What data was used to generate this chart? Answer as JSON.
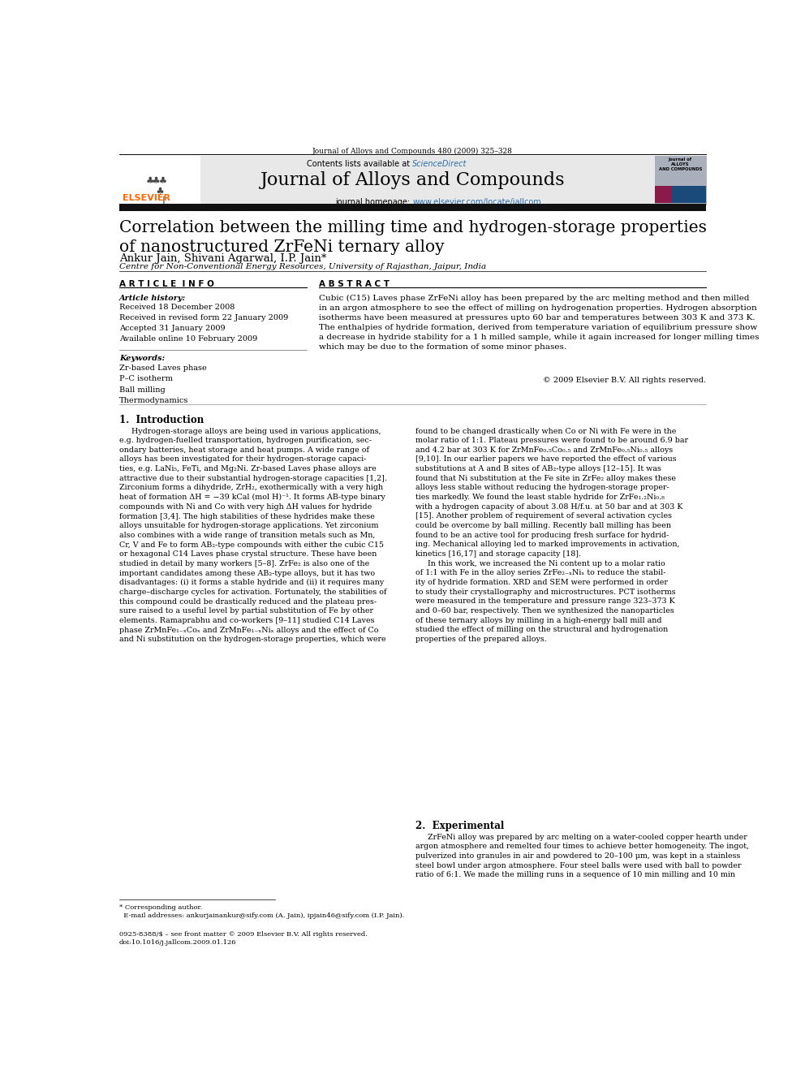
{
  "page_width": 9.92,
  "page_height": 13.23,
  "background_color": "#ffffff",
  "header_journal_ref": "Journal of Alloys and Compounds 480 (2009) 325–328",
  "header_contents_text": "Contents lists available at ",
  "header_sciencedirect": "ScienceDirect",
  "header_sciencedirect_color": "#2c6eab",
  "header_journal_name": "Journal of Alloys and Compounds",
  "header_journal_homepage_text": "journal homepage: ",
  "header_journal_url": "www.elsevier.com/locate/jallcom",
  "header_journal_url_color": "#2c6eab",
  "header_bg_color": "#e8e8e8",
  "article_title": "Correlation between the milling time and hydrogen-storage properties\nof nanostructured ZrFeNi ternary alloy",
  "authors": "Ankur Jain, Shivani Agarwal, I.P. Jain*",
  "affiliation": "Centre for Non-Conventional Energy Resources, University of Rajasthan, Jaipur, India",
  "article_info_header": "A R T I C L E  I N F O",
  "abstract_header": "A B S T R A C T",
  "article_history_label": "Article history:",
  "received_1": "Received 18 December 2008",
  "received_2": "Received in revised form 22 January 2009",
  "accepted": "Accepted 31 January 2009",
  "available": "Available online 10 February 2009",
  "keywords_label": "Keywords:",
  "keywords": [
    "Zr-based Laves phase",
    "P–C isotherm",
    "Ball milling",
    "Thermodynamics"
  ],
  "abstract_text": "Cubic (C15) Laves phase ZrFeNi alloy has been prepared by the arc melting method and then milled\nin an argon atmosphere to see the effect of milling on hydrogenation properties. Hydrogen absorption\nisotherms have been measured at pressures upto 60 bar and temperatures between 303 K and 373 K.\nThe enthalpies of hydride formation, derived from temperature variation of equilibrium pressure show\na decrease in hydride stability for a 1 h milled sample, while it again increased for longer milling times\nwhich may be due to the formation of some minor phases.",
  "copyright_text": "© 2009 Elsevier B.V. All rights reserved.",
  "section1_title": "1.  Introduction",
  "intro_col1": "     Hydrogen-storage alloys are being used in various applications,\ne.g. hydrogen-fuelled transportation, hydrogen purification, sec-\nondary batteries, heat storage and heat pumps. A wide range of\nalloys has been investigated for their hydrogen-storage capaci-\nties, e.g. LaNi₅, FeTi, and Mg₂Ni. Zr-based Laves phase alloys are\nattractive due to their substantial hydrogen-storage capacities [1,2].\nZirconium forms a dihydride, ZrH₂, exothermically with a very high\nheat of formation ΔH = −39 kCal (mol H)⁻¹. It forms AB-type binary\ncompounds with Ni and Co with very high ΔH values for hydride\nformation [3,4]. The high stabilities of these hydrides make these\nalloys unsuitable for hydrogen-storage applications. Yet zirconium\nalso combines with a wide range of transition metals such as Mn,\nCr, V and Fe to form AB₂-type compounds with either the cubic C15\nor hexagonal C14 Laves phase crystal structure. These have been\nstudied in detail by many workers [5–8]. ZrFe₂ is also one of the\nimportant candidates among these AB₂-type alloys, but it has two\ndisadvantages: (i) it forms a stable hydride and (ii) it requires many\ncharge–discharge cycles for activation. Fortunately, the stabilities of\nthis compound could be drastically reduced and the plateau pres-\nsure raised to a useful level by partial substitution of Fe by other\nelements. Ramaprabhu and co-workers [9–11] studied C14 Laves\nphase ZrMnFe₁₋ₓCoₓ and ZrMnFe₁₋ₓNiₓ alloys and the effect of Co\nand Ni substitution on the hydrogen-storage properties, which were",
  "intro_col2": "found to be changed drastically when Co or Ni with Fe were in the\nmolar ratio of 1:1. Plateau pressures were found to be around 6.9 bar\nand 4.2 bar at 303 K for ZrMnFe₀.₅Co₀.₅ and ZrMnFe₀.₅Ni₀.₅ alloys\n[9,10]. In our earlier papers we have reported the effect of various\nsubstitutions at A and B sites of AB₂-type alloys [12–15]. It was\nfound that Ni substitution at the Fe site in ZrFe₂ alloy makes these\nalloys less stable without reducing the hydrogen-storage proper-\nties markedly. We found the least stable hydride for ZrFe₁.₂Ni₀.₈\nwith a hydrogen capacity of about 3.08 H/f.u. at 50 bar and at 303 K\n[15]. Another problem of requirement of several activation cycles\ncould be overcome by ball milling. Recently ball milling has been\nfound to be an active tool for producing fresh surface for hydrid-\ning. Mechanical alloying led to marked improvements in activation,\nkinetics [16,17] and storage capacity [18].\n     In this work, we increased the Ni content up to a molar ratio\nof 1:1 with Fe in the alloy series ZrFe₂₋ₓNiₓ to reduce the stabil-\nity of hydride formation. XRD and SEM were performed in order\nto study their crystallography and microstructures. PCT isotherms\nwere measured in the temperature and pressure range 323–373 K\nand 0–60 bar, respectively. Then we synthesized the nanoparticles\nof these ternary alloys by milling in a high-energy ball mill and\nstudied the effect of milling on the structural and hydrogenation\nproperties of the prepared alloys.",
  "section2_title": "2.  Experimental",
  "experimental_text": "     ZrFeNi alloy was prepared by arc melting on a water-cooled copper hearth under\nargon atmosphere and remelted four times to achieve better homogeneity. The ingot,\npulverized into granules in air and powdered to 20–100 μm, was kept in a stainless\nsteel bowl under argon atmosphere. Four steel balls were used with ball to powder\nratio of 6:1. We made the milling runs in a sequence of 10 min milling and 10 min",
  "footer_note_1": "* Corresponding author.",
  "footer_note_2": "  E-mail addresses: ankurjainankur@sify.com (A. Jain), ipjain46@sify.com (I.P. Jain).",
  "footer_issn": "0925-8388/$ – see front matter © 2009 Elsevier B.V. All rights reserved.",
  "footer_doi": "doi:10.1016/j.jallcom.2009.01.126",
  "elsevier_text_color": "#ff6600"
}
